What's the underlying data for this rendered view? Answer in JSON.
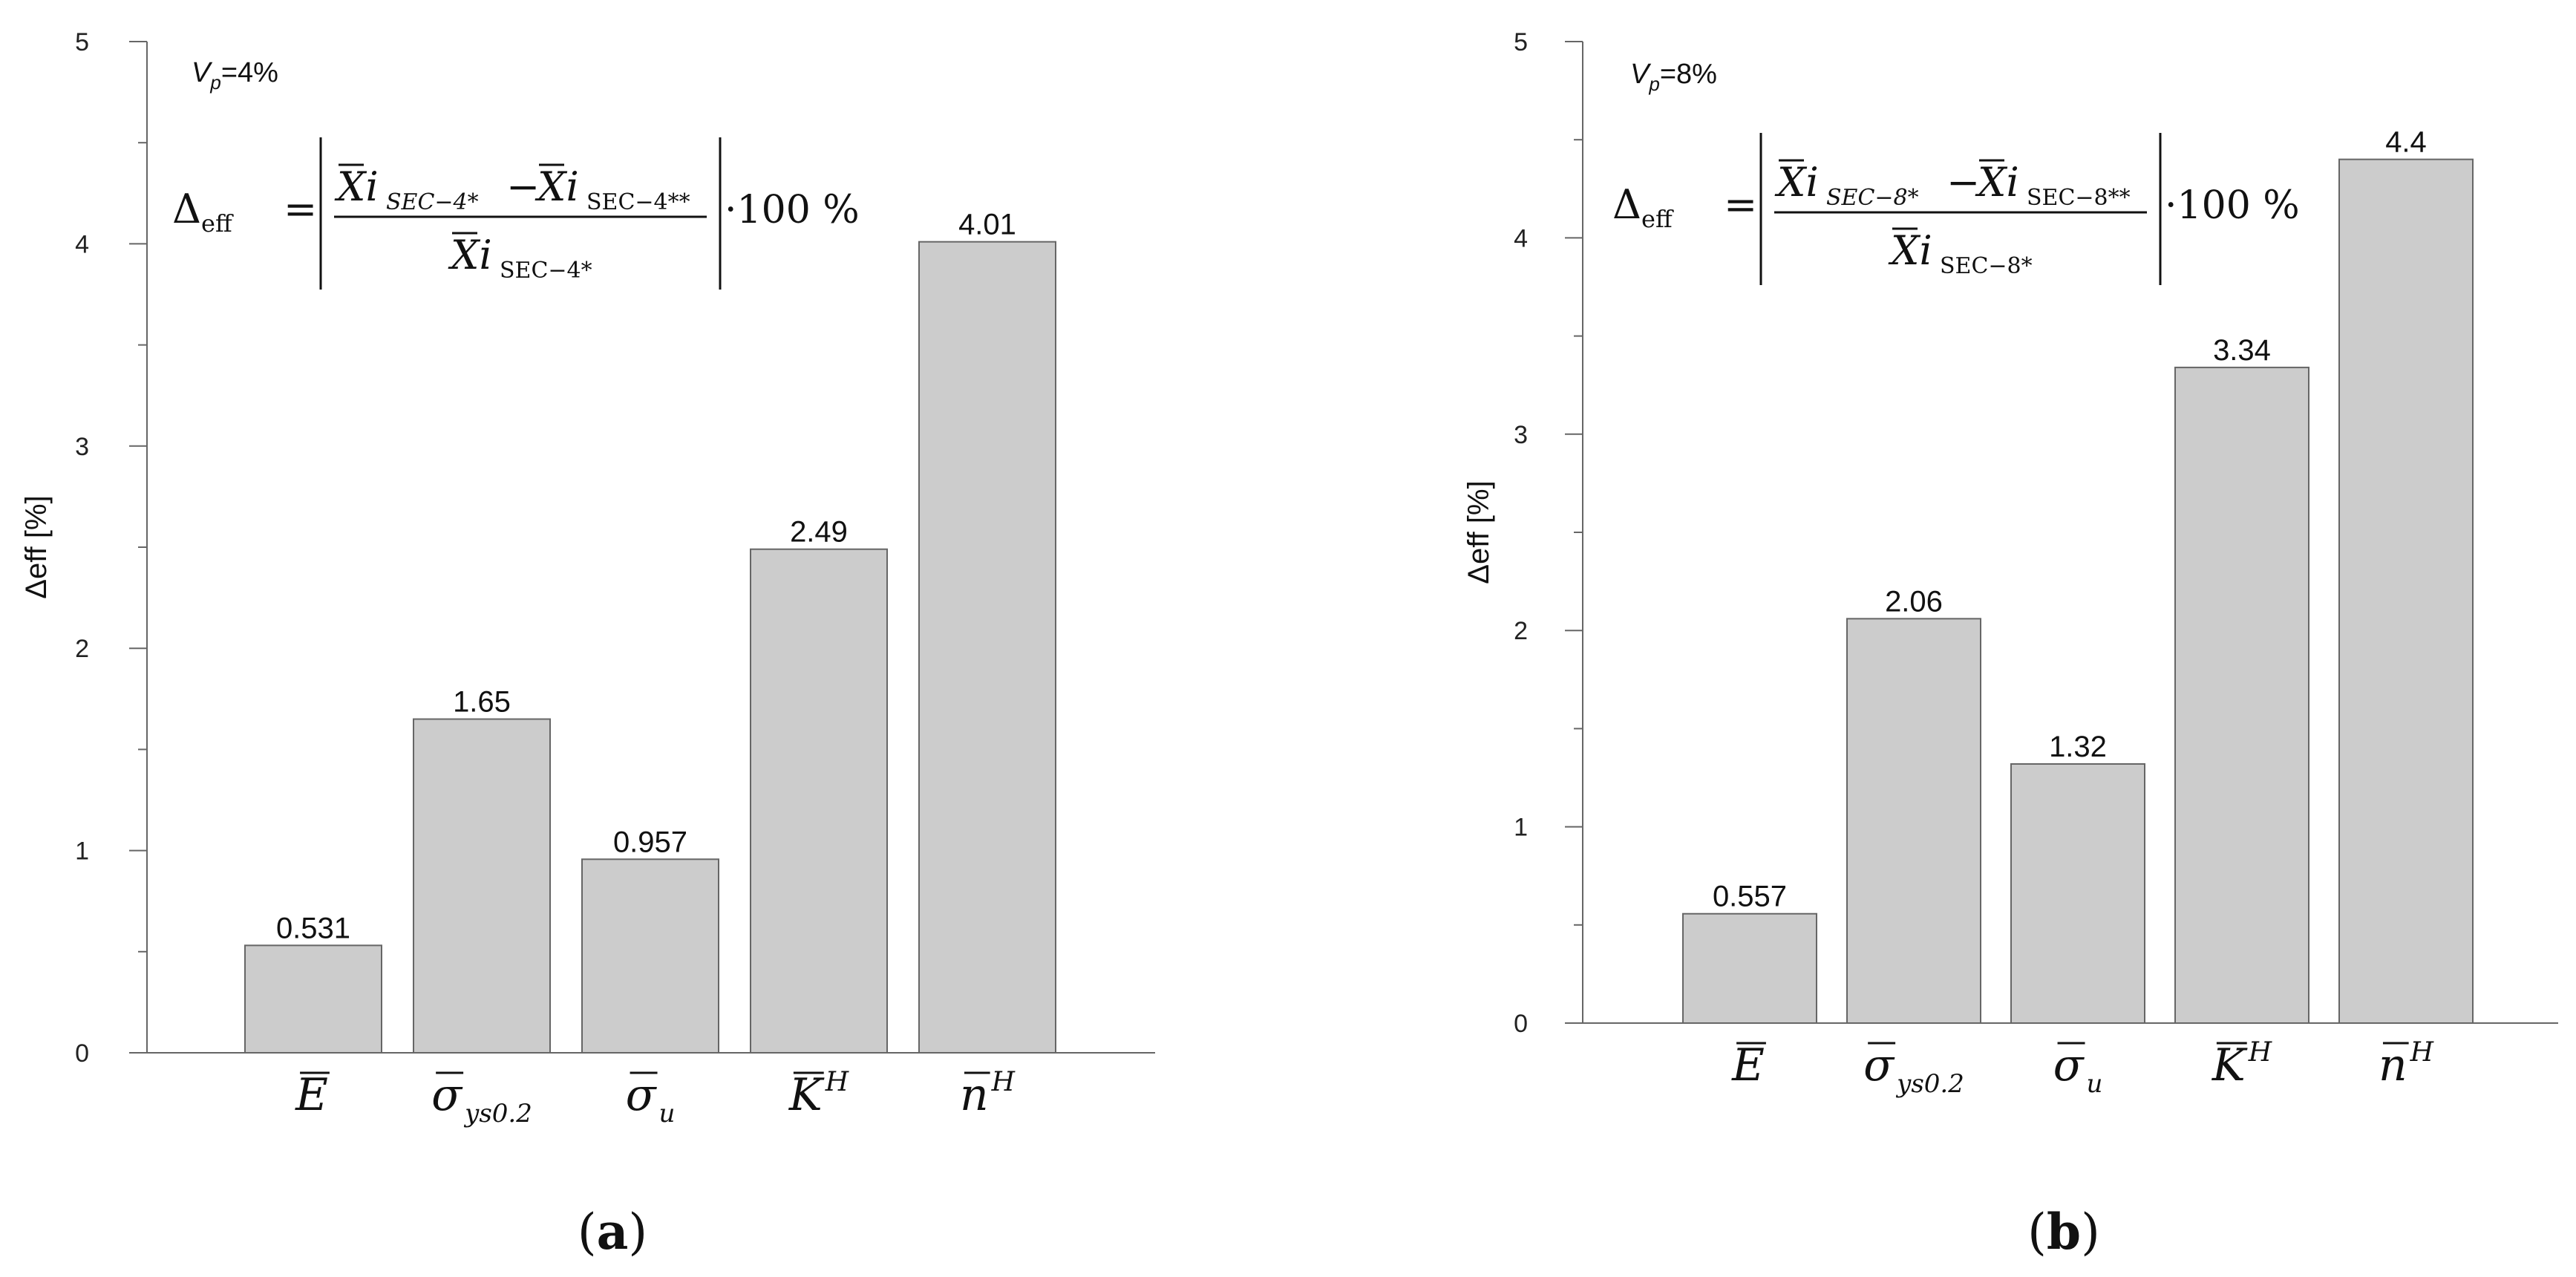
{
  "chart_data": [
    {
      "type": "bar",
      "panel": "a",
      "panel_label": {
        "open": "(",
        "letter": "a",
        "close": ")"
      },
      "annotation": {
        "symbol": "V",
        "subscript": "p",
        "text": "=4%"
      },
      "formula": {
        "lhs": "Δ",
        "lhs_sub": "eff",
        "num_a_sub": "SEC−4*",
        "num_b_sub": "SEC−4**",
        "den_sub": "SEC−4*",
        "factor": "·100 %"
      },
      "categories": [
        "E",
        "σ ys0.2",
        "σ u",
        "K H",
        "n H"
      ],
      "category_labels": [
        {
          "main": "E",
          "sub": "",
          "sup": ""
        },
        {
          "main": "σ",
          "sub": "ys0.2",
          "sup": ""
        },
        {
          "main": "σ",
          "sub": "u",
          "sup": ""
        },
        {
          "main": "K",
          "sub": "",
          "sup": "H"
        },
        {
          "main": "n",
          "sub": "",
          "sup": "H"
        }
      ],
      "values": [
        0.531,
        1.65,
        0.957,
        2.49,
        4.01
      ],
      "value_labels": [
        "0.531",
        "1.65",
        "0.957",
        "2.49",
        "4.01"
      ],
      "ylabel": {
        "symbol": "Δ",
        "rest": "eff [%]"
      },
      "ylim": [
        0,
        5
      ],
      "yticks": [
        "0",
        "1",
        "2",
        "3",
        "4",
        "5"
      ],
      "bar_color": "#cccccc",
      "grid": false
    },
    {
      "type": "bar",
      "panel": "b",
      "panel_label": {
        "open": "(",
        "letter": "b",
        "close": ")"
      },
      "annotation": {
        "symbol": "V",
        "subscript": "p",
        "text": "=8%"
      },
      "formula": {
        "lhs": "Δ",
        "lhs_sub": "eff",
        "num_a_sub": "SEC−8*",
        "num_b_sub": "SEC−8**",
        "den_sub": "SEC−8*",
        "factor": "·100 %"
      },
      "categories": [
        "E",
        "σ ys0.2",
        "σ u",
        "K H",
        "n H"
      ],
      "category_labels": [
        {
          "main": "E",
          "sub": "",
          "sup": ""
        },
        {
          "main": "σ",
          "sub": "ys0.2",
          "sup": ""
        },
        {
          "main": "σ",
          "sub": "u",
          "sup": ""
        },
        {
          "main": "K",
          "sub": "",
          "sup": "H"
        },
        {
          "main": "n",
          "sub": "",
          "sup": "H"
        }
      ],
      "values": [
        0.557,
        2.06,
        1.32,
        3.34,
        4.4
      ],
      "value_labels": [
        "0.557",
        "2.06",
        "1.32",
        "3.34",
        "4.4"
      ],
      "ylabel": {
        "symbol": "Δ",
        "rest": "eff [%]"
      },
      "ylim": [
        0,
        5
      ],
      "yticks": [
        "0",
        "1",
        "2",
        "3",
        "4",
        "5"
      ],
      "bar_color": "#cccccc",
      "grid": false
    }
  ]
}
